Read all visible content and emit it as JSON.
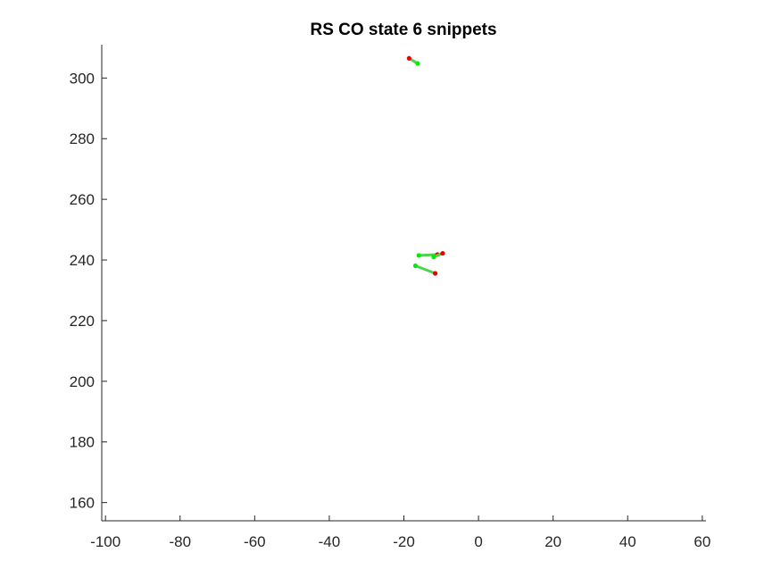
{
  "chart_data": {
    "type": "line",
    "title": "RS  CO state 6 snippets",
    "xlabel": "",
    "ylabel": "",
    "xlim": [
      -101,
      61
    ],
    "ylim": [
      154,
      311
    ],
    "xticks": [
      -100,
      -80,
      -60,
      -40,
      -20,
      0,
      20,
      40,
      60
    ],
    "yticks": [
      160,
      180,
      200,
      220,
      240,
      260,
      280,
      300
    ],
    "xtick_labels": [
      "-100",
      "-80",
      "-60",
      "-40",
      "-20",
      "0",
      "20",
      "40",
      "60"
    ],
    "ytick_labels": [
      "160",
      "180",
      "200",
      "220",
      "240",
      "260",
      "280",
      "300"
    ],
    "grid": false,
    "box": false,
    "colors": {
      "line": "#4dd34d",
      "start_marker": "#00ee00",
      "end_marker": "#ee0000"
    },
    "series": [
      {
        "x": [
          -16.3,
          -18.6
        ],
        "y": [
          304.8,
          306.5
        ]
      },
      {
        "x": [
          -16.0,
          -11.0
        ],
        "y": [
          241.5,
          241.8
        ]
      },
      {
        "x": [
          -12.0,
          -9.6
        ],
        "y": [
          241.0,
          242.2
        ]
      },
      {
        "x": [
          -16.9,
          -11.6
        ],
        "y": [
          238.1,
          235.6
        ]
      }
    ]
  }
}
